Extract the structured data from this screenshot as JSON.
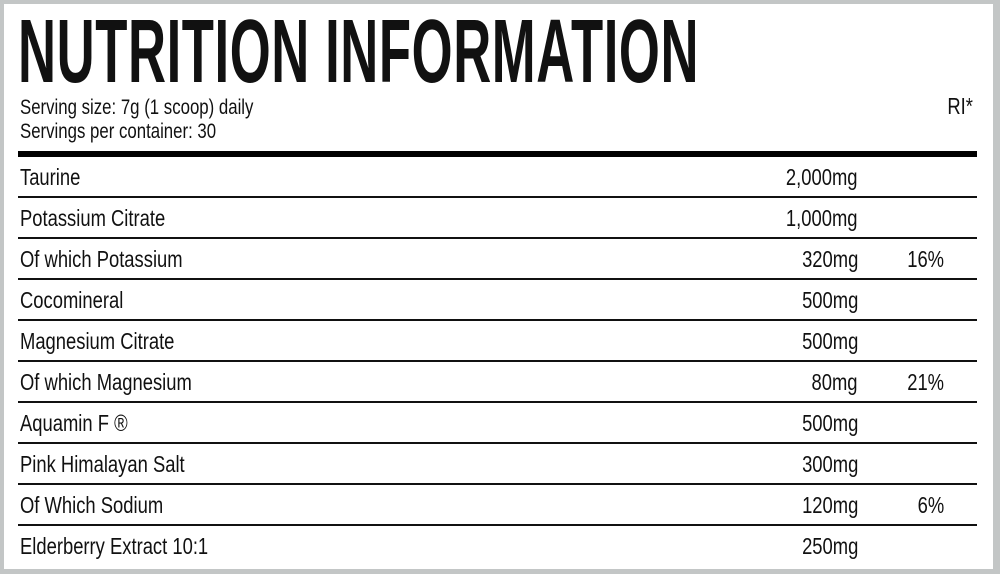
{
  "title": "NUTRITION INFORMATION",
  "serving_size": "Serving size: 7g (1 scoop) daily",
  "servings_per_container": "Servings per container: 30",
  "ri_header": "RI*",
  "rows": [
    {
      "name": "Taurine",
      "amount": "2,000mg",
      "ri": ""
    },
    {
      "name": "Potassium Citrate",
      "amount": "1,000mg",
      "ri": ""
    },
    {
      "name": "Of which Potassium",
      "amount": "320mg",
      "ri": "16%"
    },
    {
      "name": "Cocomineral",
      "amount": "500mg",
      "ri": ""
    },
    {
      "name": "Magnesium Citrate",
      "amount": "500mg",
      "ri": ""
    },
    {
      "name": "Of which Magnesium",
      "amount": "80mg",
      "ri": "21%"
    },
    {
      "name": "Aquamin F ®",
      "amount": "500mg",
      "ri": ""
    },
    {
      "name": "Pink Himalayan Salt",
      "amount": "300mg",
      "ri": ""
    },
    {
      "name": "Of Which Sodium",
      "amount": "120mg",
      "ri": "6%"
    },
    {
      "name": "Elderberry Extract 10:1",
      "amount": "250mg",
      "ri": ""
    }
  ]
}
